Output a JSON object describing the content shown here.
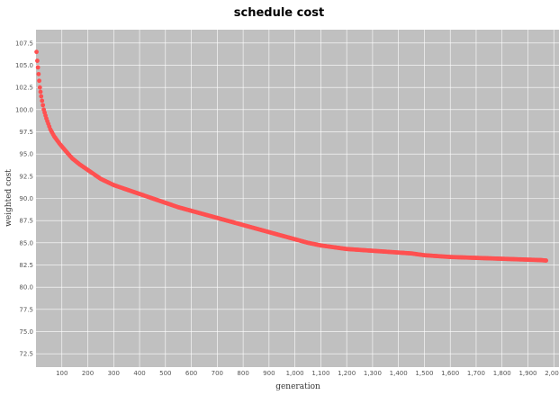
{
  "chart_data": {
    "type": "scatter",
    "title": "schedule cost",
    "xlabel": "generation",
    "ylabel": "weighted cost",
    "xlim": [
      0,
      2020
    ],
    "ylim": [
      71.0,
      109.0
    ],
    "grid": true,
    "legend": "none",
    "colors": {
      "background": "#c0c0c0",
      "grid": "#ffffff",
      "marker": "#ff5050"
    },
    "x_ticks": [
      {
        "value": 100,
        "label": "100"
      },
      {
        "value": 200,
        "label": "200"
      },
      {
        "value": 300,
        "label": "300"
      },
      {
        "value": 400,
        "label": "400"
      },
      {
        "value": 500,
        "label": "500"
      },
      {
        "value": 600,
        "label": "600"
      },
      {
        "value": 700,
        "label": "700"
      },
      {
        "value": 800,
        "label": "800"
      },
      {
        "value": 900,
        "label": "900"
      },
      {
        "value": 1000,
        "label": "1,000"
      },
      {
        "value": 1100,
        "label": "1,100"
      },
      {
        "value": 1200,
        "label": "1,200"
      },
      {
        "value": 1300,
        "label": "1,300"
      },
      {
        "value": 1400,
        "label": "1,400"
      },
      {
        "value": 1500,
        "label": "1,500"
      },
      {
        "value": 1600,
        "label": "1,600"
      },
      {
        "value": 1700,
        "label": "1,700"
      },
      {
        "value": 1800,
        "label": "1,800"
      },
      {
        "value": 1900,
        "label": "1,900"
      },
      {
        "value": 2000,
        "label": "2,000"
      }
    ],
    "y_ticks": [
      {
        "value": 72.5,
        "label": "72.5"
      },
      {
        "value": 75.0,
        "label": "75.0"
      },
      {
        "value": 77.5,
        "label": "77.5"
      },
      {
        "value": 80.0,
        "label": "80.0"
      },
      {
        "value": 82.5,
        "label": "82.5"
      },
      {
        "value": 85.0,
        "label": "85.0"
      },
      {
        "value": 87.5,
        "label": "87.5"
      },
      {
        "value": 90.0,
        "label": "90.0"
      },
      {
        "value": 92.5,
        "label": "92.5"
      },
      {
        "value": 95.0,
        "label": "95.0"
      },
      {
        "value": 97.5,
        "label": "97.5"
      },
      {
        "value": 100.0,
        "label": "100.0"
      },
      {
        "value": 102.5,
        "label": "102.5"
      },
      {
        "value": 105.0,
        "label": "105.0"
      },
      {
        "value": 107.5,
        "label": "107.5"
      }
    ],
    "series": [
      {
        "points": [
          [
            2,
            106.5
          ],
          [
            5,
            105.5
          ],
          [
            10,
            104.0
          ],
          [
            15,
            102.5
          ],
          [
            20,
            101.5
          ],
          [
            30,
            100.0
          ],
          [
            40,
            99.0
          ],
          [
            55,
            97.8
          ],
          [
            70,
            97.0
          ],
          [
            90,
            96.2
          ],
          [
            110,
            95.5
          ],
          [
            140,
            94.5
          ],
          [
            170,
            93.8
          ],
          [
            200,
            93.2
          ],
          [
            250,
            92.2
          ],
          [
            300,
            91.5
          ],
          [
            350,
            91.0
          ],
          [
            400,
            90.5
          ],
          [
            450,
            90.0
          ],
          [
            500,
            89.5
          ],
          [
            550,
            89.0
          ],
          [
            600,
            88.6
          ],
          [
            650,
            88.2
          ],
          [
            700,
            87.8
          ],
          [
            750,
            87.4
          ],
          [
            800,
            87.0
          ],
          [
            850,
            86.6
          ],
          [
            900,
            86.2
          ],
          [
            950,
            85.8
          ],
          [
            1000,
            85.4
          ],
          [
            1050,
            85.0
          ],
          [
            1100,
            84.7
          ],
          [
            1150,
            84.5
          ],
          [
            1200,
            84.3
          ],
          [
            1250,
            84.2
          ],
          [
            1300,
            84.1
          ],
          [
            1350,
            84.0
          ],
          [
            1400,
            83.9
          ],
          [
            1450,
            83.8
          ],
          [
            1500,
            83.6
          ],
          [
            1550,
            83.5
          ],
          [
            1600,
            83.4
          ],
          [
            1650,
            83.35
          ],
          [
            1700,
            83.3
          ],
          [
            1750,
            83.25
          ],
          [
            1800,
            83.2
          ],
          [
            1850,
            83.15
          ],
          [
            1900,
            83.1
          ],
          [
            1950,
            83.05
          ],
          [
            1970,
            83.0
          ]
        ]
      }
    ]
  }
}
